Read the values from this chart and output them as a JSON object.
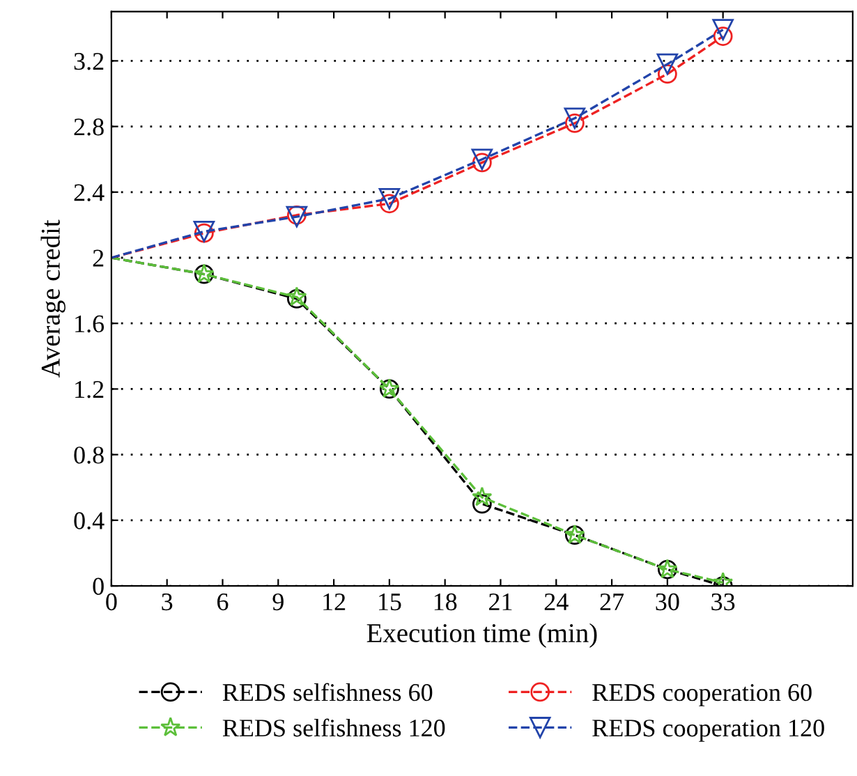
{
  "chart_data": {
    "type": "line",
    "xlabel": "Execution time (min)",
    "ylabel": "Average credit",
    "x": [
      0,
      5,
      10,
      15,
      20,
      25,
      30,
      33
    ],
    "xlim": [
      0,
      40
    ],
    "xticks": [
      0,
      3,
      6,
      9,
      12,
      15,
      18,
      21,
      24,
      27,
      30,
      33
    ],
    "ylim": [
      0,
      3.5
    ],
    "yticks": [
      0,
      0.4,
      0.8,
      1.2,
      1.6,
      2,
      2.4,
      2.8,
      3.2
    ],
    "grid": true,
    "legend": "bottom",
    "line_style": "dashed",
    "series": [
      {
        "name": "REDS selfishness 60",
        "color": "#000000",
        "marker": "circle",
        "values": [
          2,
          1.9,
          1.75,
          1.2,
          0.5,
          0.31,
          0.1,
          0
        ]
      },
      {
        "name": "REDS selfishness 120",
        "color": "#5cbf3a",
        "marker": "star",
        "values": [
          2,
          1.9,
          1.76,
          1.2,
          0.54,
          0.31,
          0.1,
          0.02
        ]
      },
      {
        "name": "REDS cooperation 60",
        "color": "#ee2222",
        "marker": "circle",
        "values": [
          2,
          2.15,
          2.26,
          2.33,
          2.58,
          2.82,
          3.12,
          3.35
        ]
      },
      {
        "name": "REDS cooperation 120",
        "color": "#2244aa",
        "marker": "triangle",
        "values": [
          2,
          2.16,
          2.25,
          2.36,
          2.6,
          2.85,
          3.18,
          3.39
        ]
      }
    ]
  }
}
